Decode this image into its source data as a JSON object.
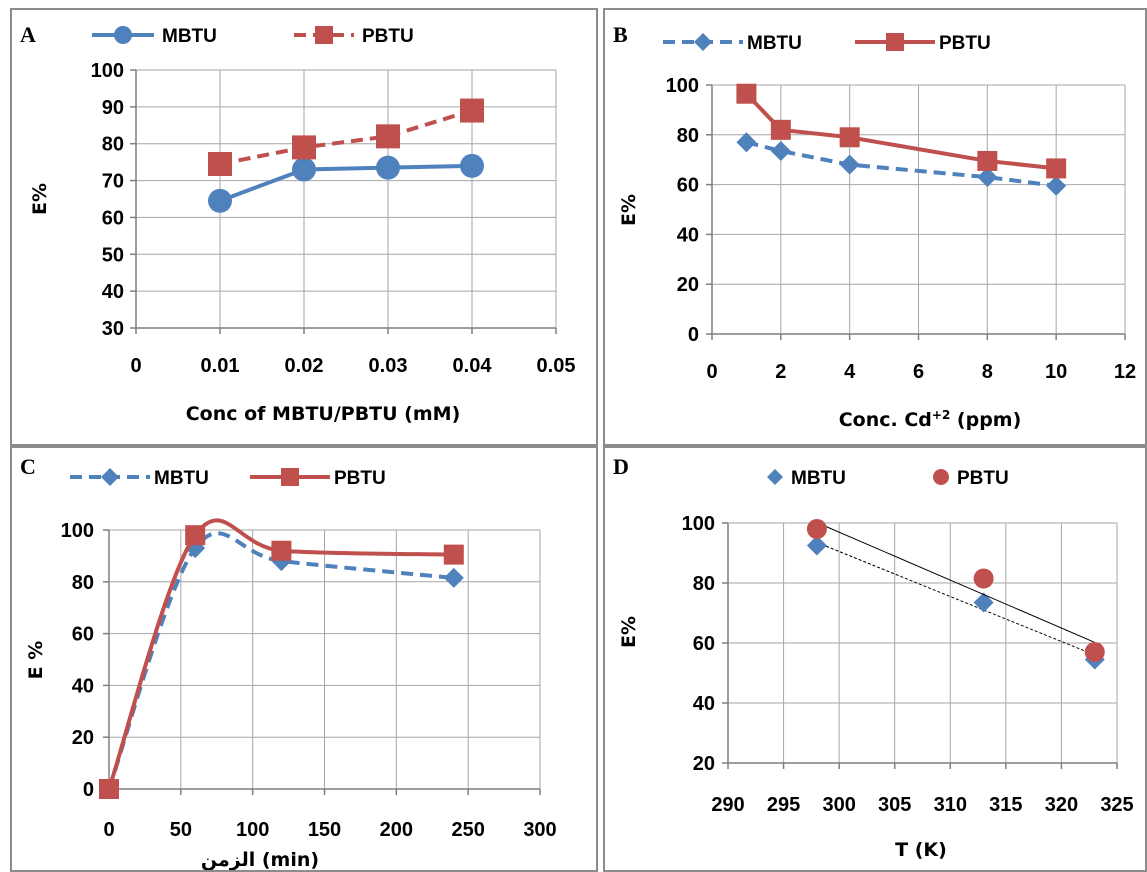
{
  "chart_data": [
    {
      "panel_label": "A",
      "type": "line",
      "x": [
        0.01,
        0.02,
        0.03,
        0.04
      ],
      "series": [
        {
          "name": "MBTU",
          "values": [
            64.5,
            73,
            73.5,
            74
          ],
          "color": "#4f81bd",
          "line": "solid",
          "marker": "circle"
        },
        {
          "name": "PBTU",
          "values": [
            74.5,
            79,
            82,
            89
          ],
          "color": "#c0504d",
          "line": "dashed",
          "marker": "square"
        }
      ],
      "xlabel": "Conc of MBTU/PBTU (mM)",
      "ylabel": "E%",
      "xlim": [
        0,
        0.05
      ],
      "ylim": [
        30,
        100
      ],
      "xticks": [
        "0",
        "0.01",
        "0.02",
        "0.03",
        "0.04",
        "0.05"
      ],
      "yticks": [
        "30",
        "40",
        "50",
        "60",
        "70",
        "80",
        "90",
        "100"
      ],
      "grid": true,
      "legend_position": "top"
    },
    {
      "panel_label": "B",
      "type": "line",
      "x": [
        1,
        2,
        4,
        8,
        10
      ],
      "series": [
        {
          "name": "MBTU",
          "values": [
            77,
            73.5,
            68,
            63,
            59.5
          ],
          "color": "#4f81bd",
          "line": "dashed",
          "marker": "diamond"
        },
        {
          "name": "PBTU",
          "values": [
            96.5,
            82,
            79,
            69.5,
            66.5
          ],
          "color": "#c0504d",
          "line": "solid",
          "marker": "square"
        }
      ],
      "xlabel": "Conc. Cd",
      "xlabel_superscript": "+2",
      "xlabel_suffix": " (ppm)",
      "ylabel": "E%",
      "xlim": [
        0,
        12
      ],
      "ylim": [
        0,
        100
      ],
      "xticks": [
        "0",
        "2",
        "4",
        "6",
        "8",
        "10",
        "12"
      ],
      "yticks": [
        "0",
        "20",
        "40",
        "60",
        "80",
        "100"
      ],
      "grid": true,
      "legend_position": "top"
    },
    {
      "panel_label": "C",
      "type": "line",
      "x": [
        0,
        60,
        120,
        240
      ],
      "series": [
        {
          "name": "MBTU",
          "values": [
            0,
            93,
            88,
            81.5
          ],
          "color": "#4f81bd",
          "line": "dashed",
          "marker": "diamond"
        },
        {
          "name": "PBTU",
          "values": [
            0,
            98,
            92,
            90.5
          ],
          "color": "#c0504d",
          "line": "solid",
          "marker": "square"
        }
      ],
      "xlabel": "الزمن (min)",
      "ylabel": "E %",
      "xlim": [
        0,
        300
      ],
      "ylim": [
        0,
        100
      ],
      "xticks": [
        "0",
        "50",
        "100",
        "150",
        "200",
        "250",
        "300"
      ],
      "yticks": [
        "0",
        "20",
        "40",
        "60",
        "80",
        "100"
      ],
      "grid": true,
      "smoothed": true,
      "legend_position": "top"
    },
    {
      "panel_label": "D",
      "type": "scatter",
      "series": [
        {
          "name": "MBTU",
          "x": [
            298,
            313,
            323
          ],
          "values": [
            92.5,
            73.5,
            54.5
          ],
          "color": "#4f81bd",
          "marker": "diamond",
          "trendline": "dotted"
        },
        {
          "name": "PBTU",
          "x": [
            298,
            313,
            323
          ],
          "values": [
            98,
            81.5,
            57
          ],
          "color": "#c0504d",
          "marker": "circle",
          "trendline": "solid"
        }
      ],
      "xlabel": "T (K)",
      "ylabel": "E%",
      "xlim": [
        290,
        325
      ],
      "ylim": [
        20,
        100
      ],
      "xticks": [
        "290",
        "295",
        "300",
        "305",
        "310",
        "315",
        "320",
        "325"
      ],
      "yticks": [
        "20",
        "40",
        "60",
        "80",
        "100"
      ],
      "grid": true,
      "legend_position": "top"
    }
  ]
}
